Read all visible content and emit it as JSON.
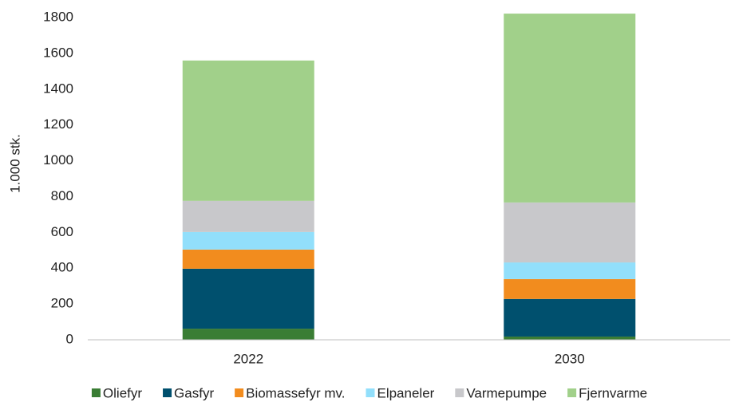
{
  "chart_data": {
    "type": "stacked_bar",
    "y_label": "1.000 stk.",
    "categories": [
      "2022",
      "2030"
    ],
    "series": [
      {
        "name": "Oliefyr",
        "color": "#3a7d34",
        "values": [
          62,
          18
        ]
      },
      {
        "name": "Gasfyr",
        "color": "#00506e",
        "values": [
          335,
          210
        ]
      },
      {
        "name": "Biomassefyr mv.",
        "color": "#f28c1e",
        "values": [
          107,
          111
        ]
      },
      {
        "name": "Elpaneler",
        "color": "#92dffb",
        "values": [
          98,
          93
        ]
      },
      {
        "name": "Varmepumpe",
        "color": "#c8c8cb",
        "values": [
          174,
          335
        ]
      },
      {
        "name": "Fjernvarme",
        "color": "#a1d08a",
        "values": [
          784,
          1055
        ]
      }
    ],
    "ylim": [
      0,
      1800
    ],
    "yticks": [
      0,
      200,
      400,
      600,
      800,
      1000,
      1200,
      1400,
      1600,
      1800
    ],
    "grid": false,
    "legend": "bottom"
  }
}
